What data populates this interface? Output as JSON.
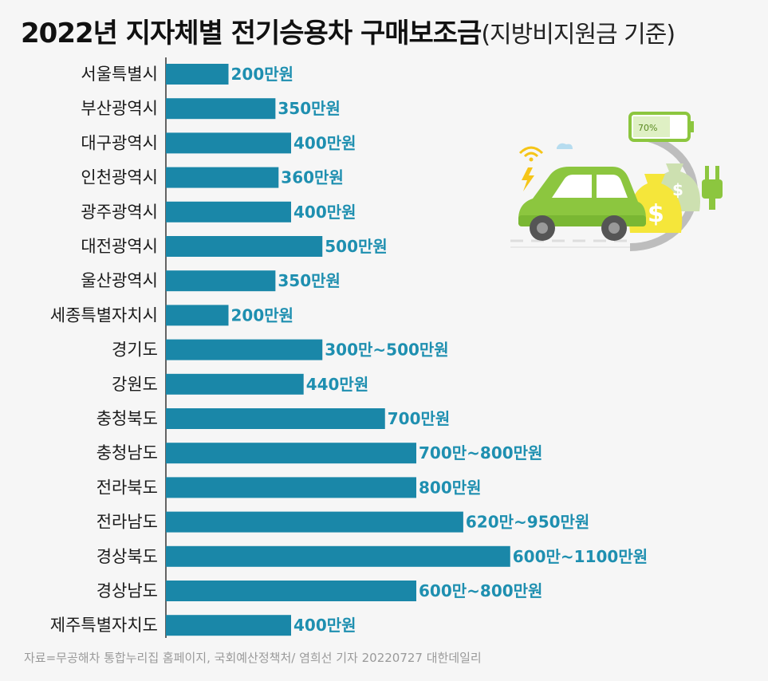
{
  "header": {
    "title": "2022년 지자체별 전기승용차 구매보조금",
    "subtitle": "(지방비지원금 기준)"
  },
  "illustration": {
    "icon": "electric-car-charging-illustration",
    "battery_text": "70%"
  },
  "footer": {
    "source": "자료=무공해차 통합누리집 홈페이지, 국회예산정책처/ 염희선 기자 20220727 대한데일리"
  },
  "colors": {
    "bar": "#1a87a8",
    "value_text": "#1e8fb0",
    "car": "#8cc63f"
  },
  "chart_data": {
    "type": "bar",
    "orientation": "horizontal",
    "unit": "만원",
    "categories": [
      "서울특별시",
      "부산광역시",
      "대구광역시",
      "인천광역시",
      "광주광역시",
      "대전광역시",
      "울산광역시",
      "세종특별자치시",
      "경기도",
      "강원도",
      "충청북도",
      "충청남도",
      "전라북도",
      "전라남도",
      "경상북도",
      "경상남도",
      "제주특별자치도"
    ],
    "values": [
      200,
      350,
      400,
      360,
      400,
      500,
      350,
      200,
      500,
      440,
      700,
      800,
      800,
      950,
      1100,
      800,
      400
    ],
    "value_labels": [
      "200만원",
      "350만원",
      "400만원",
      "360만원",
      "400만원",
      "500만원",
      "350만원",
      "200만원",
      "300만~500만원",
      "440만원",
      "700만원",
      "700만~800만원",
      "800만원",
      "620만~950만원",
      "600만~1100만원",
      "600만~800만원",
      "400만원"
    ],
    "grid": false,
    "legend": "none"
  }
}
